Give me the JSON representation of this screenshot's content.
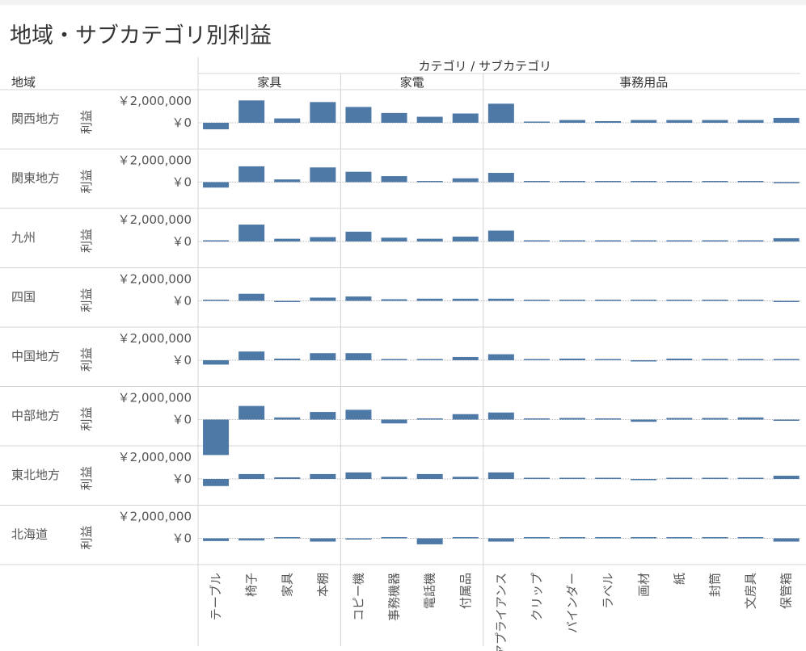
{
  "title": "地域・サブカテゴリ別利益",
  "header": {
    "column_title": "カテゴリ / サブカテゴリ",
    "row_title": "地域"
  },
  "chart_data": {
    "type": "bar",
    "measure": "利益",
    "categories": [
      {
        "name": "家具",
        "subcategories": [
          "テーブル",
          "椅子",
          "家具",
          "本棚"
        ]
      },
      {
        "name": "家電",
        "subcategories": [
          "コピー機",
          "事務機器",
          "電話機",
          "付属品"
        ]
      },
      {
        "name": "事務用品",
        "subcategories": [
          "アプライアンス",
          "クリップ",
          "バインダー",
          "ラベル",
          "画材",
          "紙",
          "封筒",
          "文房具",
          "保管箱"
        ]
      }
    ],
    "y_tick_labels": [
      "￥2,000,000",
      "￥0"
    ],
    "y_ticks": [
      2000000,
      0
    ],
    "ylim": [
      -4200000,
      2400000
    ],
    "regions": [
      {
        "name": "関西地方",
        "values": [
          -600000,
          2050000,
          400000,
          1900000,
          1450000,
          900000,
          550000,
          850000,
          1750000,
          100000,
          250000,
          150000,
          250000,
          250000,
          250000,
          250000,
          450000
        ]
      },
      {
        "name": "関東地方",
        "values": [
          -500000,
          1450000,
          250000,
          1350000,
          950000,
          550000,
          50000,
          350000,
          850000,
          50000,
          50000,
          50000,
          100000,
          100000,
          100000,
          100000,
          -50000
        ]
      },
      {
        "name": "九州",
        "values": [
          100000,
          1550000,
          250000,
          400000,
          900000,
          350000,
          250000,
          450000,
          1000000,
          50000,
          100000,
          50000,
          100000,
          100000,
          100000,
          100000,
          300000
        ]
      },
      {
        "name": "四国",
        "values": [
          50000,
          650000,
          -50000,
          300000,
          400000,
          150000,
          200000,
          200000,
          200000,
          50000,
          50000,
          50000,
          50000,
          50000,
          50000,
          50000,
          -50000
        ]
      },
      {
        "name": "中国地方",
        "values": [
          -400000,
          800000,
          150000,
          650000,
          650000,
          50000,
          50000,
          300000,
          550000,
          50000,
          150000,
          50000,
          -50000,
          150000,
          50000,
          100000,
          50000
        ]
      },
      {
        "name": "中部地方",
        "values": [
          -3250000,
          1250000,
          200000,
          700000,
          900000,
          -350000,
          50000,
          500000,
          650000,
          50000,
          150000,
          50000,
          -200000,
          150000,
          150000,
          200000,
          -50000
        ]
      },
      {
        "name": "東北地方",
        "values": [
          -650000,
          450000,
          150000,
          450000,
          600000,
          200000,
          450000,
          200000,
          600000,
          50000,
          50000,
          50000,
          -50000,
          50000,
          50000,
          50000,
          300000
        ]
      },
      {
        "name": "北海道",
        "values": [
          -250000,
          -200000,
          50000,
          -300000,
          -100000,
          50000,
          -550000,
          50000,
          -300000,
          50000,
          50000,
          50000,
          50000,
          50000,
          50000,
          50000,
          -300000
        ]
      }
    ],
    "grid": false,
    "zero_line": true
  },
  "colors": {
    "bar": "#4e79a7",
    "grid_line": "#d4d4d4",
    "zero_line": "#b9b9b9",
    "text": "#333333",
    "muted_text": "#555555"
  }
}
